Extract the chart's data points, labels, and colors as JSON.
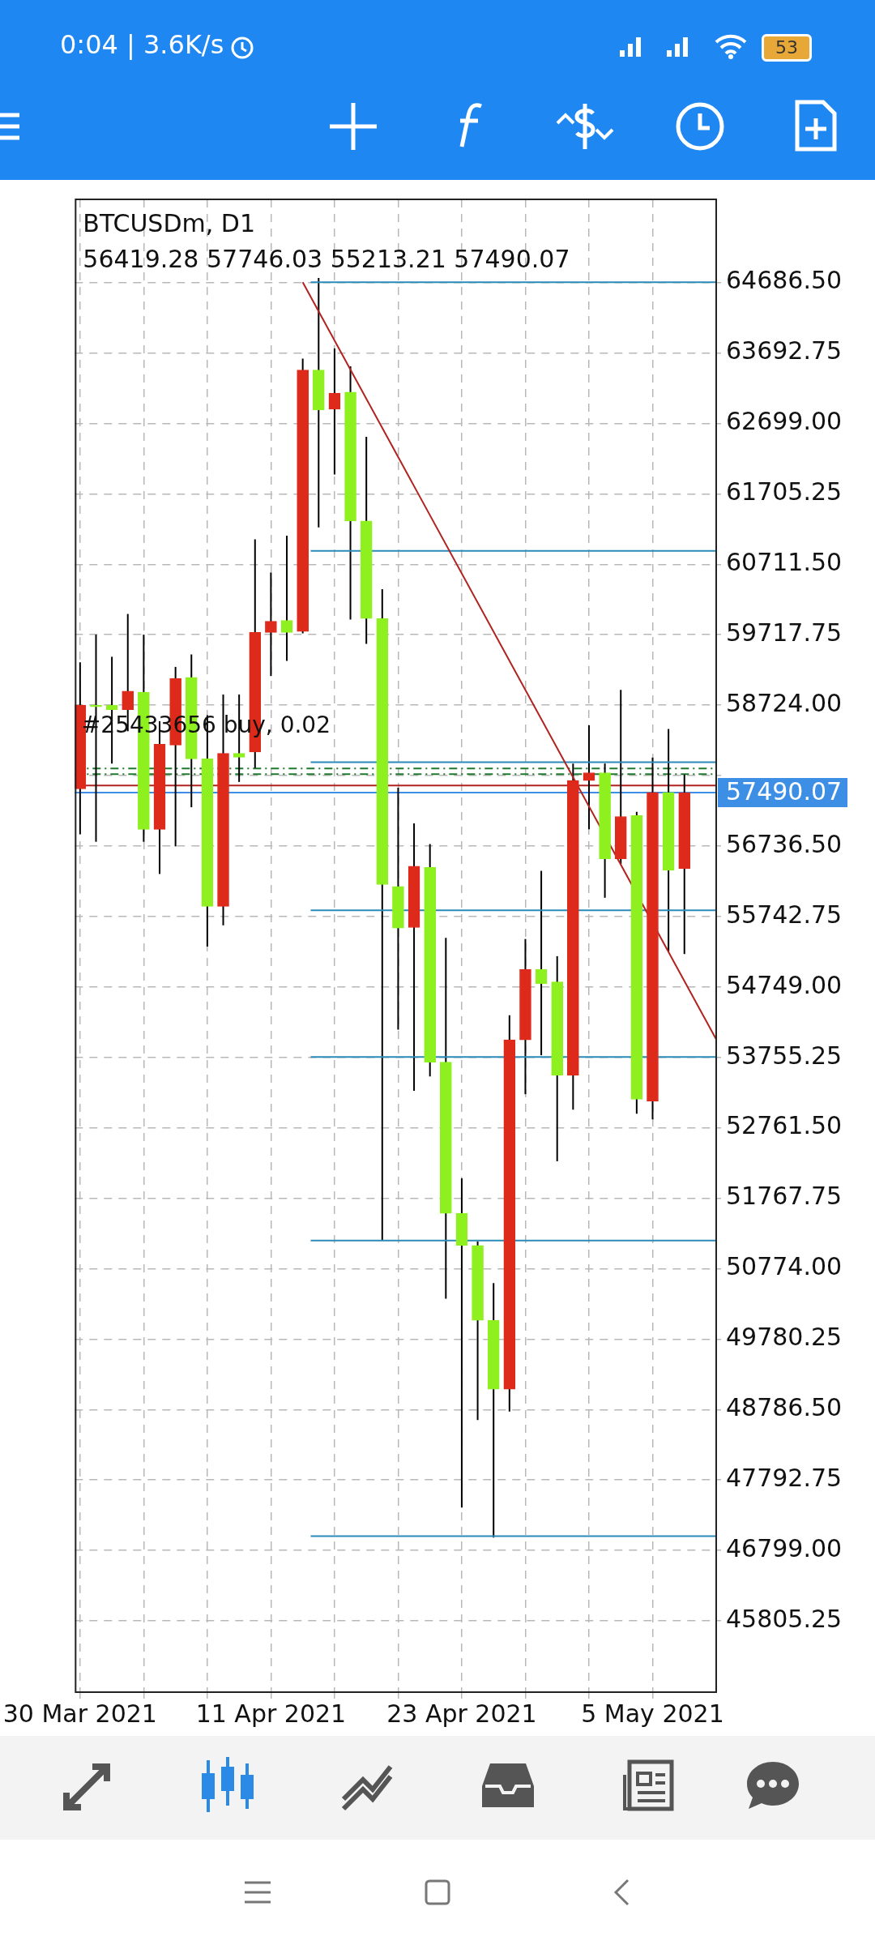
{
  "chart_data": {
    "type": "candlestick",
    "title": "BTCUSDm, D1",
    "subtitle": "56419.28 57746.03 55213.21 57490.07",
    "x": [
      "2021-03-30",
      "2021-03-31",
      "2021-04-01",
      "2021-04-02",
      "2021-04-03",
      "2021-04-04",
      "2021-04-05",
      "2021-04-06",
      "2021-04-07",
      "2021-04-08",
      "2021-04-09",
      "2021-04-10",
      "2021-04-11",
      "2021-04-12",
      "2021-04-13",
      "2021-04-14",
      "2021-04-15",
      "2021-04-16",
      "2021-04-17",
      "2021-04-18",
      "2021-04-19",
      "2021-04-20",
      "2021-04-21",
      "2021-04-22",
      "2021-04-23",
      "2021-04-24",
      "2021-04-25",
      "2021-04-26",
      "2021-04-27",
      "2021-04-28",
      "2021-04-29",
      "2021-04-30",
      "2021-05-01",
      "2021-05-02",
      "2021-05-03",
      "2021-05-04",
      "2021-05-05",
      "2021-05-06",
      "2021-05-07"
    ],
    "ohlc": [
      [
        57544,
        59329,
        56903,
        58726
      ],
      [
        58726,
        59719,
        56797,
        58700
      ],
      [
        58726,
        59407,
        57900,
        58661
      ],
      [
        58661,
        60011,
        58356,
        58921
      ],
      [
        58908,
        59719,
        56797,
        56973
      ],
      [
        56973,
        58498,
        56343,
        58174
      ],
      [
        58161,
        59264,
        56732,
        59102
      ],
      [
        59115,
        59440,
        57284,
        57966
      ],
      [
        57966,
        58583,
        55320,
        55886
      ],
      [
        55886,
        58875,
        55619,
        58044
      ],
      [
        58044,
        58875,
        57641,
        57990
      ],
      [
        58064,
        61063,
        57836,
        59751
      ],
      [
        59751,
        60596,
        59135,
        59907
      ],
      [
        59920,
        61115,
        59349,
        59751
      ],
      [
        59764,
        63614,
        59738,
        63452
      ],
      [
        63452,
        64751,
        61232,
        62887
      ],
      [
        62900,
        63757,
        61978,
        63127
      ],
      [
        63140,
        63504,
        59933,
        61323
      ],
      [
        61323,
        62511,
        59589,
        59946
      ],
      [
        59946,
        60362,
        51180,
        56193
      ],
      [
        56168,
        57560,
        54148,
        55579
      ],
      [
        55587,
        57057,
        53284,
        56451
      ],
      [
        56435,
        56765,
        53486,
        53688
      ],
      [
        53688,
        55441,
        50352,
        51555
      ],
      [
        51555,
        52048,
        47403,
        51103
      ],
      [
        51103,
        51159,
        48639,
        50045
      ],
      [
        50045,
        50570,
        46982,
        49075
      ],
      [
        49075,
        54351,
        48760,
        54003
      ],
      [
        54003,
        55425,
        53236,
        54997
      ],
      [
        54997,
        56387,
        53785,
        54795
      ],
      [
        54819,
        55183,
        52290,
        53502
      ],
      [
        53502,
        57901,
        53018,
        57661
      ],
      [
        57661,
        58440,
        56973,
        57771
      ],
      [
        57771,
        57901,
        56007,
        56557
      ],
      [
        56557,
        58940,
        56480,
        57154
      ],
      [
        57167,
        57219,
        52961,
        53163
      ],
      [
        53139,
        57985,
        52880,
        57492
      ],
      [
        57492,
        58388,
        55247,
        56395
      ],
      [
        56419.28,
        57746.03,
        55213.21,
        57490.07
      ]
    ],
    "colors": [
      "#dd2a1b",
      "#8ef01f",
      "#8ef01f",
      "#dd2a1b",
      "#8ef01f",
      "#dd2a1b",
      "#dd2a1b",
      "#8ef01f",
      "#8ef01f",
      "#dd2a1b",
      "#8ef01f",
      "#dd2a1b",
      "#dd2a1b",
      "#8ef01f",
      "#dd2a1b",
      "#8ef01f",
      "#dd2a1b",
      "#8ef01f",
      "#8ef01f",
      "#8ef01f",
      "#8ef01f",
      "#dd2a1b",
      "#8ef01f",
      "#8ef01f",
      "#8ef01f",
      "#8ef01f",
      "#8ef01f",
      "#dd2a1b",
      "#dd2a1b",
      "#8ef01f",
      "#8ef01f",
      "#dd2a1b",
      "#dd2a1b",
      "#8ef01f",
      "#dd2a1b",
      "#8ef01f",
      "#dd2a1b",
      "#8ef01f",
      "#dd2a1b"
    ],
    "series": [
      {
        "type": "line",
        "color": "#2a8ab8",
        "x": [
          "2021-04-13T12:00",
          "2021-05-09"
        ],
        "values": [
          64690,
          64690
        ]
      },
      {
        "type": "line",
        "color": "#2a8ab8",
        "x": [
          "2021-04-13T12:00",
          "2021-05-09"
        ],
        "values": [
          60900,
          60900
        ]
      },
      {
        "type": "line",
        "color": "#2a8ab8",
        "x": [
          "2021-04-13T12:00",
          "2021-05-09"
        ],
        "values": [
          57920,
          57920
        ]
      },
      {
        "type": "line",
        "color": "#2a8ab8",
        "x": [
          "2021-04-13T12:00",
          "2021-05-09"
        ],
        "values": [
          55830,
          55830
        ]
      },
      {
        "type": "line",
        "color": "#2a8ab8",
        "x": [
          "2021-04-13T12:00",
          "2021-05-09"
        ],
        "values": [
          53760,
          53760
        ]
      },
      {
        "type": "line",
        "color": "#2a8ab8",
        "x": [
          "2021-04-13T12:00",
          "2021-05-09"
        ],
        "values": [
          51170,
          51170
        ]
      },
      {
        "type": "line",
        "color": "#2a8ab8",
        "x": [
          "2021-04-13T12:00",
          "2021-05-09"
        ],
        "values": [
          47000,
          47000
        ]
      },
      {
        "type": "line",
        "color": "#b0231f",
        "x": [
          "2021-04-13",
          "2021-05-09"
        ],
        "values": [
          64690,
          54010
        ]
      }
    ],
    "ref_lines": [
      {
        "axis": "y",
        "value": 57830,
        "color": "#1f7a2e",
        "line_style": "dashed"
      },
      {
        "axis": "y",
        "value": 57750,
        "color": "#1f7a2e",
        "line_style": "dashed"
      },
      {
        "axis": "y",
        "value": 57590,
        "color": "#b0231f"
      },
      {
        "axis": "y",
        "value": 57490.07,
        "label": "57490.07",
        "color": "#3d8fe6"
      }
    ],
    "annotations": [
      "0:04 | 3.6K/s",
      "53",
      {
        "text": "#25433656 buy, 0.02",
        "x": "2021-03-30",
        "y": 57830
      }
    ],
    "xlim": [
      "2021-03-29T16:00",
      "2021-05-09"
    ],
    "xticks": [
      {
        "value": "2021-03-30",
        "label": "30 Mar 2021"
      },
      {
        "value": "2021-04-03",
        "label": null
      },
      {
        "value": "2021-04-07",
        "label": null
      },
      {
        "value": "2021-04-11",
        "label": "11 Apr 2021"
      },
      {
        "value": "2021-04-15",
        "label": null
      },
      {
        "value": "2021-04-19",
        "label": null
      },
      {
        "value": "2021-04-23",
        "label": "23 Apr 2021"
      },
      {
        "value": "2021-04-27",
        "label": null
      },
      {
        "value": "2021-05-01",
        "label": null
      },
      {
        "value": "2021-05-05",
        "label": "5 May 2021"
      }
    ],
    "ylim": [
      44800,
      65860
    ],
    "yticks": [
      {
        "value": 64686.5,
        "label": "64686.50"
      },
      63692.75,
      {
        "value": 62699,
        "label": "62699.00"
      },
      61705.25,
      {
        "value": 60711.5,
        "label": "60711.50"
      },
      59717.75,
      {
        "value": 58724,
        "label": "58724.00"
      },
      {
        "value": 57730.25,
        "label": null
      },
      {
        "value": 56736.5,
        "label": "56736.50"
      },
      55742.75,
      {
        "value": 54749,
        "label": "54749.00"
      },
      53755.25,
      {
        "value": 52761.5,
        "label": "52761.50"
      },
      51767.75,
      {
        "value": 50774,
        "label": "50774.00"
      },
      49780.25,
      {
        "value": 48786.5,
        "label": "48786.50"
      },
      47792.75,
      {
        "value": 46799,
        "label": "46799.00"
      },
      45805.25
    ],
    "grid": true,
    "legend": false,
    "marker": "none",
    "line_style": "solid"
  }
}
